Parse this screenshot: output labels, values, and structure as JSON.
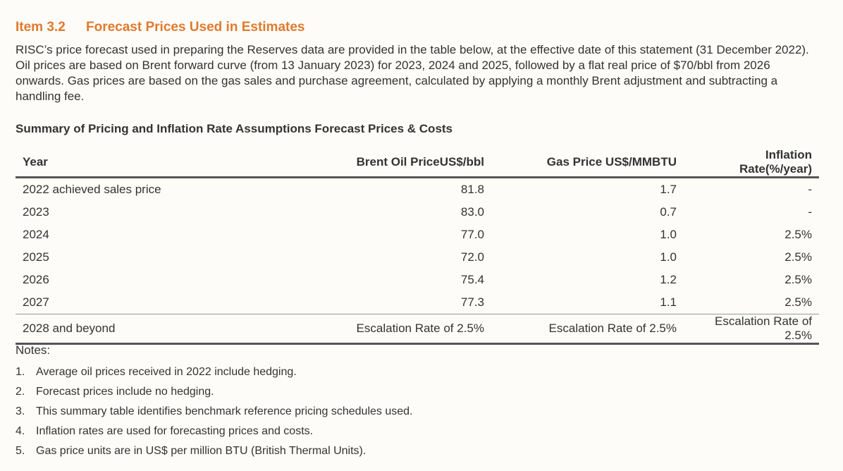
{
  "heading": {
    "number": "Item 3.2",
    "title": "Forecast Prices Used in Estimates"
  },
  "intro": "RISC’s price forecast used in preparing the Reserves data are provided in the table below, at the effective date of this statement (31 December 2022). Oil prices are based on Brent forward curve (from 13 January 2023) for 2023, 2024 and 2025, followed by a flat real price of $70/bbl from 2026 onwards. Gas prices are based on the gas sales and purchase agreement, calculated by applying a monthly Brent adjustment and subtracting a handling fee.",
  "table": {
    "title": "Summary of Pricing and Inflation Rate Assumptions Forecast Prices & Costs",
    "headers": [
      "Year",
      "Brent Oil PriceUS$/bbl",
      "Gas Price US$/MMBTU",
      "Inflation Rate(%/year)"
    ],
    "rows": [
      [
        "2022 achieved sales price",
        "81.8",
        "1.7",
        "-"
      ],
      [
        "2023",
        "83.0",
        "0.7",
        "-"
      ],
      [
        "2024",
        "77.0",
        "1.0",
        "2.5%"
      ],
      [
        "2025",
        "72.0",
        "1.0",
        "2.5%"
      ],
      [
        "2026",
        "75.4",
        "1.2",
        "2.5%"
      ],
      [
        "2027",
        "77.3",
        "1.1",
        "2.5%"
      ],
      [
        "2028 and beyond",
        "Escalation Rate of 2.5%",
        "Escalation Rate of 2.5%",
        "Escalation Rate of 2.5%"
      ]
    ]
  },
  "notes": {
    "title": "Notes:",
    "items": [
      {
        "num": "1.",
        "text": "Average oil prices received in 2022 include hedging."
      },
      {
        "num": "2.",
        "text": "Forecast prices include no hedging."
      },
      {
        "num": "3.",
        "text": "This summary table identifies benchmark reference pricing schedules used."
      },
      {
        "num": "4.",
        "text": "Inflation rates are used for forecasting prices and costs."
      },
      {
        "num": "5.",
        "text": "Gas price units are in US$ per million BTU (British Thermal Units)."
      }
    ]
  },
  "colors": {
    "heading": "#e07a2e",
    "text": "#333333",
    "rule": "#555555"
  }
}
